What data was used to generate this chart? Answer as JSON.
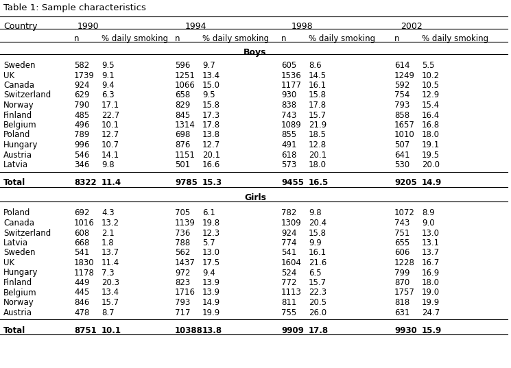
{
  "title": "Table 1: Sample characteristics",
  "header_years": [
    "1990",
    "1994",
    "1998",
    "2002"
  ],
  "subheader": [
    "n",
    "% daily smoking",
    "n",
    "% daily smoking",
    "n",
    "% daily smoking",
    "n",
    "% daily smoking"
  ],
  "boys_section": "Boys",
  "girls_section": "Girls",
  "boys_data": [
    [
      "Sweden",
      "582",
      "9.5",
      "596",
      "9.7",
      "605",
      "8.6",
      "614",
      "5.5"
    ],
    [
      "UK",
      "1739",
      "9.1",
      "1251",
      "13.4",
      "1536",
      "14.5",
      "1249",
      "10.2"
    ],
    [
      "Canada",
      "924",
      "9.4",
      "1066",
      "15.0",
      "1177",
      "16.1",
      "592",
      "10.5"
    ],
    [
      "Switzerland",
      "629",
      "6.3",
      "658",
      "9.5",
      "930",
      "15.8",
      "754",
      "12.9"
    ],
    [
      "Norway",
      "790",
      "17.1",
      "829",
      "15.8",
      "838",
      "17.8",
      "793",
      "15.4"
    ],
    [
      "Finland",
      "485",
      "22.7",
      "845",
      "17.3",
      "743",
      "15.7",
      "858",
      "16.4"
    ],
    [
      "Belgium",
      "496",
      "10.1",
      "1314",
      "17.8",
      "1089",
      "21.9",
      "1657",
      "16.8"
    ],
    [
      "Poland",
      "789",
      "12.7",
      "698",
      "13.8",
      "855",
      "18.5",
      "1010",
      "18.0"
    ],
    [
      "Hungary",
      "996",
      "10.7",
      "876",
      "12.7",
      "491",
      "12.8",
      "507",
      "19.1"
    ],
    [
      "Austria",
      "546",
      "14.1",
      "1151",
      "20.1",
      "618",
      "20.1",
      "641",
      "19.5"
    ],
    [
      "Latvia",
      "346",
      "9.8",
      "501",
      "16.6",
      "573",
      "18.0",
      "530",
      "20.0"
    ]
  ],
  "boys_total": [
    "Total",
    "8322",
    "11.4",
    "9785",
    "15.3",
    "9455",
    "16.5",
    "9205",
    "14.9"
  ],
  "girls_data": [
    [
      "Poland",
      "692",
      "4.3",
      "705",
      "6.1",
      "782",
      "9.8",
      "1072",
      "8.9"
    ],
    [
      "Canada",
      "1016",
      "13.2",
      "1139",
      "19.8",
      "1309",
      "20.4",
      "743",
      "9.0"
    ],
    [
      "Switzerland",
      "608",
      "2.1",
      "736",
      "12.3",
      "924",
      "15.8",
      "751",
      "13.0"
    ],
    [
      "Latvia",
      "668",
      "1.8",
      "788",
      "5.7",
      "774",
      "9.9",
      "655",
      "13.1"
    ],
    [
      "Sweden",
      "541",
      "13.7",
      "562",
      "13.0",
      "541",
      "16.1",
      "606",
      "13.7"
    ],
    [
      "UK",
      "1830",
      "11.4",
      "1437",
      "17.5",
      "1604",
      "21.6",
      "1228",
      "16.7"
    ],
    [
      "Hungary",
      "1178",
      "7.3",
      "972",
      "9.4",
      "524",
      "6.5",
      "799",
      "16.9"
    ],
    [
      "Finland",
      "449",
      "20.3",
      "823",
      "13.9",
      "772",
      "15.7",
      "870",
      "18.0"
    ],
    [
      "Belgium",
      "445",
      "13.4",
      "1716",
      "13.9",
      "1113",
      "22.3",
      "1757",
      "19.0"
    ],
    [
      "Norway",
      "846",
      "15.7",
      "793",
      "14.9",
      "811",
      "20.5",
      "818",
      "19.9"
    ],
    [
      "Austria",
      "478",
      "8.7",
      "717",
      "19.9",
      "755",
      "26.0",
      "631",
      "24.7"
    ]
  ],
  "girls_total": [
    "Total",
    "8751",
    "10.1",
    "10388",
    "13.8",
    "9909",
    "17.8",
    "9930",
    "15.9"
  ],
  "bg_color": "#ffffff",
  "text_color": "#000000",
  "font_size": 8.5,
  "header_font_size": 9.0
}
